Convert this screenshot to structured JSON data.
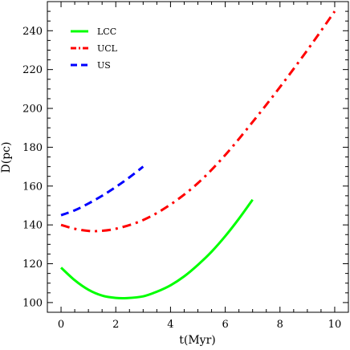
{
  "chart_data": {
    "type": "line",
    "title": "",
    "xlabel": "t(Myr)",
    "ylabel": "D(pc)",
    "xlim": [
      -0.5,
      10.5
    ],
    "ylim": [
      95,
      255
    ],
    "x_ticks": [
      0,
      2,
      4,
      6,
      8,
      10
    ],
    "y_ticks": [
      100,
      120,
      140,
      160,
      180,
      200,
      220,
      240
    ],
    "x_tick_labels": [
      "0",
      "2",
      "4",
      "6",
      "8",
      "10"
    ],
    "y_tick_labels": [
      "100",
      "120",
      "140",
      "160",
      "180",
      "200",
      "220",
      "240"
    ],
    "grid": false,
    "legend_position": "top-left",
    "series": [
      {
        "name": "LCC",
        "color": "#00ff00",
        "line_style": "solid",
        "x": [
          0,
          0.5,
          1,
          1.5,
          2,
          2.4,
          3,
          3.5,
          4,
          4.5,
          5,
          5.5,
          6,
          6.5,
          7
        ],
        "y": [
          118,
          111.5,
          106.6,
          103.6,
          102.4,
          102.3,
          103.2,
          105.6,
          108.9,
          113.5,
          119.4,
          126.2,
          134.2,
          143.2,
          153
        ]
      },
      {
        "name": "UCL",
        "color": "#ff0000",
        "line_style": "dash-dot",
        "x": [
          0,
          0.5,
          1,
          1.3,
          2,
          3,
          4,
          5,
          6,
          7,
          8,
          9,
          10
        ],
        "y": [
          140,
          138,
          136.9,
          136.8,
          138,
          142.5,
          150.5,
          161.5,
          176,
          193,
          211,
          230,
          250
        ]
      },
      {
        "name": "US",
        "color": "#0000ff",
        "line_style": "dashed",
        "x": [
          0,
          0.5,
          1,
          1.5,
          2,
          2.5,
          3
        ],
        "y": [
          145,
          147.5,
          151,
          155,
          159.5,
          164.5,
          170
        ]
      }
    ]
  }
}
